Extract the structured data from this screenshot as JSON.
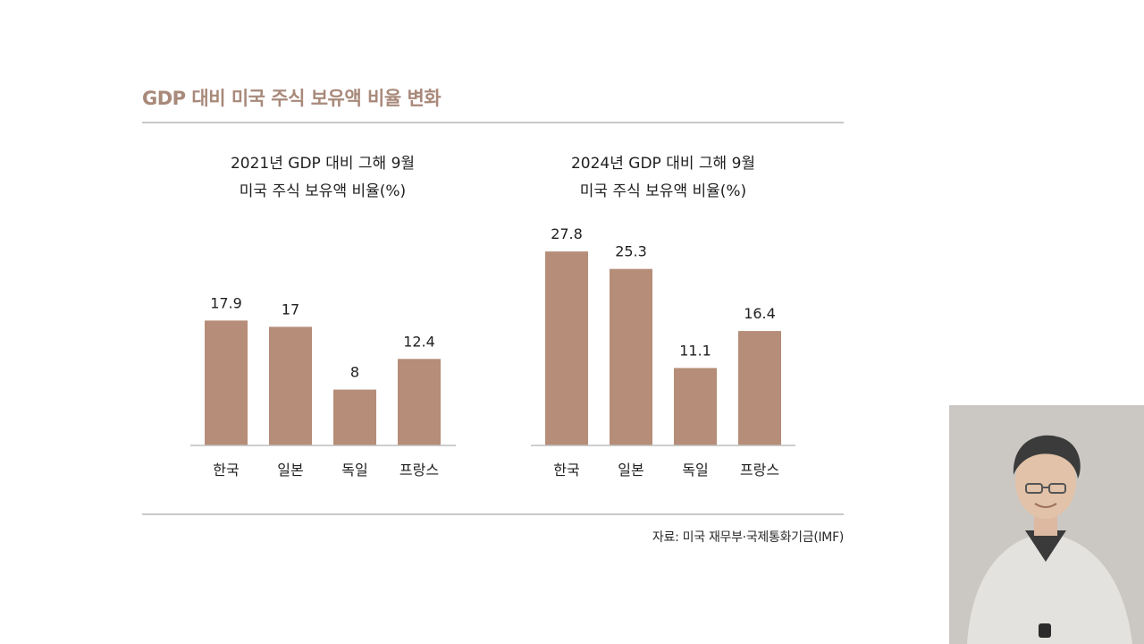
{
  "header": {
    "title": "GDP 대비 미국 주식 보유액 비율 변화"
  },
  "footer": {
    "source": "자료: 미국 재무부·국제통화기금(IMF)"
  },
  "colors": {
    "bar": "#b58d78",
    "axis": "#bdbdbd",
    "title": "#a8897a"
  },
  "chart_data": [
    {
      "type": "bar",
      "title_lines": [
        "2021년 GDP 대비 그해 9월",
        "미국 주식 보유액 비율(%)"
      ],
      "categories": [
        "한국",
        "일본",
        "독일",
        "프랑스"
      ],
      "values": [
        17.9,
        17,
        8,
        12.4
      ],
      "value_labels": [
        "17.9",
        "17",
        "8",
        "12.4"
      ],
      "xlabel": "",
      "ylabel": "",
      "ylim": [
        0,
        30
      ],
      "grid": false
    },
    {
      "type": "bar",
      "title_lines": [
        "2024년 GDP 대비 그해 9월",
        "미국 주식 보유액 비율(%)"
      ],
      "categories": [
        "한국",
        "일본",
        "독일",
        "프랑스"
      ],
      "values": [
        27.8,
        25.3,
        11.1,
        16.4
      ],
      "value_labels": [
        "27.8",
        "25.3",
        "11.1",
        "16.4"
      ],
      "xlabel": "",
      "ylabel": "",
      "ylim": [
        0,
        30
      ],
      "grid": false
    }
  ]
}
